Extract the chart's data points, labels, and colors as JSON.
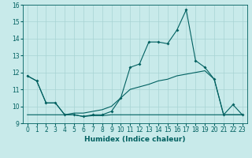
{
  "xlabel": "Humidex (Indice chaleur)",
  "x_values": [
    0,
    1,
    2,
    3,
    4,
    5,
    6,
    7,
    8,
    9,
    10,
    11,
    12,
    13,
    14,
    15,
    16,
    17,
    18,
    19,
    20,
    21,
    22,
    23
  ],
  "main_line": [
    11.8,
    11.5,
    10.2,
    10.2,
    9.5,
    9.5,
    9.4,
    9.5,
    9.5,
    9.7,
    10.5,
    12.3,
    12.5,
    13.8,
    13.8,
    13.7,
    14.5,
    15.7,
    12.7,
    12.3,
    11.6,
    9.5,
    10.1,
    9.5
  ],
  "line2": [
    11.8,
    11.5,
    10.2,
    10.2,
    9.5,
    9.6,
    9.6,
    9.7,
    9.8,
    10.0,
    10.5,
    11.0,
    11.15,
    11.3,
    11.5,
    11.6,
    11.8,
    11.9,
    12.0,
    12.1,
    11.6,
    9.5,
    9.5,
    9.5
  ],
  "line3": [
    9.5,
    9.5,
    9.5,
    9.5,
    9.5,
    9.5,
    9.4,
    9.45,
    9.45,
    9.5,
    9.5,
    9.5,
    9.5,
    9.5,
    9.5,
    9.5,
    9.5,
    9.5,
    9.5,
    9.5,
    9.5,
    9.5,
    9.5,
    9.5
  ],
  "line_color": "#006060",
  "bg_color": "#c8eaea",
  "grid_color": "#a8d4d4",
  "ylim": [
    9,
    16
  ],
  "xlim": [
    -0.5,
    23.5
  ],
  "yticks": [
    9,
    10,
    11,
    12,
    13,
    14,
    15,
    16
  ],
  "xticks": [
    0,
    1,
    2,
    3,
    4,
    5,
    6,
    7,
    8,
    9,
    10,
    11,
    12,
    13,
    14,
    15,
    16,
    17,
    18,
    19,
    20,
    21,
    22,
    23
  ],
  "tick_fontsize": 5.5,
  "xlabel_fontsize": 6.5,
  "marker_size": 2.0,
  "linewidth": 0.8
}
